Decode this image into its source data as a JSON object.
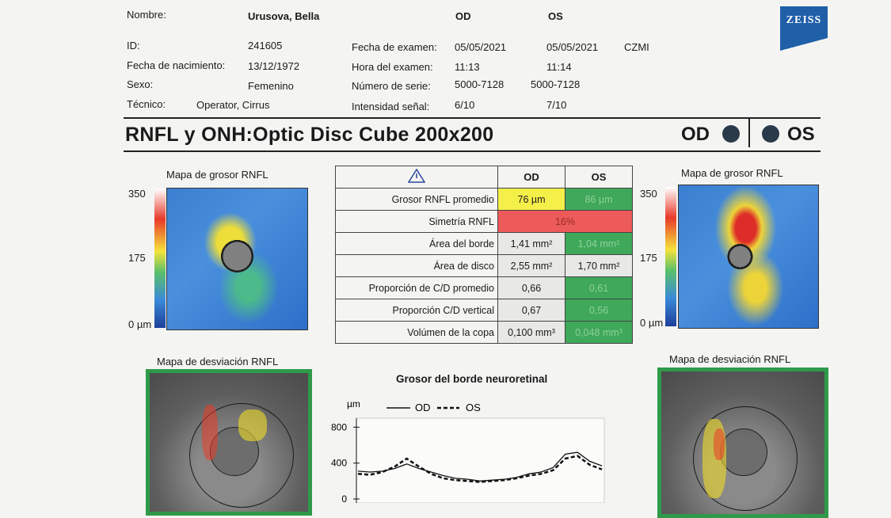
{
  "patient": {
    "name_label": "Nombre:",
    "name": "Urusova, Bella",
    "id_label": "ID:",
    "id": "241605",
    "dob_label": "Fecha de nacimiento:",
    "dob": "13/12/1972",
    "sex_label": "Sexo:",
    "sex": "Femenino",
    "tech_label": "Técnico:",
    "tech": "Operator, Cirrus"
  },
  "exam": {
    "od_header": "OD",
    "os_header": "OS",
    "date_label": "Fecha de examen:",
    "date_od": "05/05/2021",
    "date_os": "05/05/2021",
    "org": "CZMI",
    "time_label": "Hora del examen:",
    "time_od": "11:13",
    "time_os": "11:14",
    "serial_label": "Número de serie:",
    "serial_od": "5000-7128",
    "serial_os": "5000-7128",
    "signal_label": "Intensidad señal:",
    "signal_od": "6/10",
    "signal_os": "7/10"
  },
  "brand": {
    "logo_text": "ZEISS",
    "color": "#1e5fa8"
  },
  "report": {
    "title": "RNFL y ONH:Optic Disc Cube 200x200",
    "od": "OD",
    "os": "OS"
  },
  "maps": {
    "thickness_title": "Mapa de grosor RNFL",
    "deviation_title": "Mapa de desviación RNFL",
    "scale_max": "350",
    "scale_mid": "175",
    "scale_min": "0 µm"
  },
  "table": {
    "warning_icon": "warning-triangle-icon",
    "col_od": "OD",
    "col_os": "OS",
    "rows": [
      {
        "label": "Grosor RNFL promedio",
        "od": "76 µm",
        "os": "86 µm"
      },
      {
        "label": "Simetría RNFL",
        "value": "16%"
      },
      {
        "label": "Área del borde",
        "od": "1,41 mm²",
        "os": "1,04 mm²"
      },
      {
        "label": "Área de disco",
        "od": "2,55 mm²",
        "os": "1,70 mm²"
      },
      {
        "label": "Proporción de C/D promedio",
        "od": "0,66",
        "os": "0,61"
      },
      {
        "label": "Proporción C/D vertical",
        "od": "0,67",
        "os": "0,56"
      },
      {
        "label": "Volúmen de la copa",
        "od": "0,100 mm³",
        "os": "0,048 mm³"
      }
    ],
    "colors": {
      "yellow": "#f5ef4a",
      "green": "#3fa85a",
      "red": "#ec5a5a"
    }
  },
  "chart_data": {
    "type": "line",
    "title": "Grosor del borde neuroretinal",
    "ylabel": "µm",
    "ylim": [
      0,
      900
    ],
    "yticks": [
      "800",
      "400",
      "0"
    ],
    "ytick_values": [
      800,
      400,
      0
    ],
    "x": [
      0,
      1,
      2,
      3,
      4,
      5,
      6,
      7,
      8,
      9,
      10,
      11,
      12,
      13,
      14,
      15,
      16,
      17,
      18,
      19,
      20
    ],
    "series": [
      {
        "name": "OD",
        "style": "solid",
        "values": [
          310,
          300,
          310,
          340,
          390,
          340,
          300,
          260,
          230,
          220,
          200,
          210,
          220,
          240,
          280,
          300,
          350,
          500,
          520,
          420,
          370
        ]
      },
      {
        "name": "OS",
        "style": "dashed",
        "values": [
          280,
          270,
          300,
          360,
          450,
          360,
          280,
          230,
          210,
          200,
          190,
          200,
          210,
          230,
          260,
          280,
          320,
          450,
          480,
          380,
          330
        ]
      }
    ]
  }
}
